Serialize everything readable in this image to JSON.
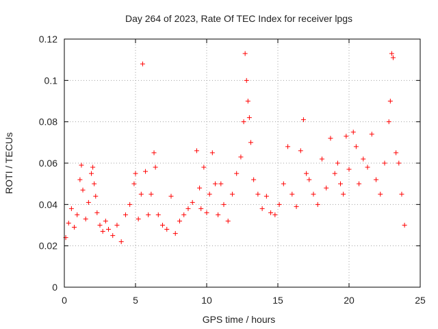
{
  "chart_data": {
    "type": "scatter",
    "title": "Day 264 of 2023, Rate Of TEC Index for receiver lpgs",
    "xlabel": "GPS time / hours",
    "ylabel": "ROTI / TECUs",
    "xlim": [
      0,
      25
    ],
    "ylim": [
      0,
      0.12
    ],
    "xticks": [
      0,
      5,
      10,
      15,
      20,
      25
    ],
    "xtick_labels": [
      "0",
      "5",
      "10",
      "15",
      "20",
      "25"
    ],
    "yticks": [
      0,
      0.02,
      0.04,
      0.06,
      0.08,
      0.1,
      0.12
    ],
    "ytick_labels": [
      "0",
      "0.02",
      "0.04",
      "0.06",
      "0.08",
      "0.1",
      "0.12"
    ],
    "grid": true,
    "marker": "+",
    "color": "#ff0000",
    "series": [
      {
        "name": "ROTI",
        "x": [
          0.1,
          0.3,
          0.5,
          0.7,
          0.9,
          1.1,
          1.2,
          1.3,
          1.5,
          1.7,
          1.9,
          2.0,
          2.1,
          2.2,
          2.3,
          2.5,
          2.7,
          2.9,
          3.1,
          3.4,
          3.7,
          4.0,
          4.3,
          4.6,
          4.9,
          5.0,
          5.2,
          5.4,
          5.5,
          5.7,
          5.9,
          6.1,
          6.3,
          6.4,
          6.6,
          6.9,
          7.2,
          7.5,
          7.8,
          8.1,
          8.4,
          8.7,
          9.0,
          9.3,
          9.5,
          9.6,
          9.8,
          10.0,
          10.2,
          10.4,
          10.6,
          10.8,
          11.0,
          11.2,
          11.5,
          11.8,
          12.1,
          12.4,
          12.6,
          12.7,
          12.8,
          12.9,
          13.0,
          13.1,
          13.3,
          13.6,
          13.9,
          14.2,
          14.5,
          14.8,
          15.1,
          15.4,
          15.7,
          16.0,
          16.3,
          16.6,
          16.8,
          17.0,
          17.2,
          17.5,
          17.8,
          18.1,
          18.4,
          18.7,
          19.0,
          19.2,
          19.4,
          19.6,
          19.8,
          20.0,
          20.3,
          20.5,
          20.7,
          21.0,
          21.3,
          21.6,
          21.9,
          22.2,
          22.5,
          22.8,
          22.9,
          23.0,
          23.1,
          23.3,
          23.5,
          23.7,
          23.9
        ],
        "y": [
          0.024,
          0.031,
          0.038,
          0.029,
          0.035,
          0.052,
          0.059,
          0.047,
          0.033,
          0.041,
          0.055,
          0.058,
          0.05,
          0.044,
          0.036,
          0.03,
          0.027,
          0.032,
          0.028,
          0.025,
          0.03,
          0.022,
          0.035,
          0.04,
          0.05,
          0.055,
          0.033,
          0.045,
          0.108,
          0.056,
          0.035,
          0.045,
          0.065,
          0.058,
          0.035,
          0.03,
          0.028,
          0.044,
          0.026,
          0.032,
          0.035,
          0.038,
          0.041,
          0.066,
          0.048,
          0.038,
          0.058,
          0.036,
          0.045,
          0.065,
          0.05,
          0.035,
          0.05,
          0.04,
          0.032,
          0.045,
          0.055,
          0.063,
          0.08,
          0.113,
          0.1,
          0.09,
          0.082,
          0.07,
          0.052,
          0.045,
          0.038,
          0.044,
          0.036,
          0.035,
          0.04,
          0.05,
          0.068,
          0.045,
          0.039,
          0.066,
          0.081,
          0.055,
          0.052,
          0.045,
          0.04,
          0.062,
          0.048,
          0.072,
          0.055,
          0.06,
          0.05,
          0.045,
          0.073,
          0.057,
          0.075,
          0.068,
          0.05,
          0.062,
          0.058,
          0.074,
          0.052,
          0.045,
          0.06,
          0.08,
          0.09,
          0.113,
          0.111,
          0.065,
          0.06,
          0.045,
          0.03
        ]
      }
    ]
  }
}
